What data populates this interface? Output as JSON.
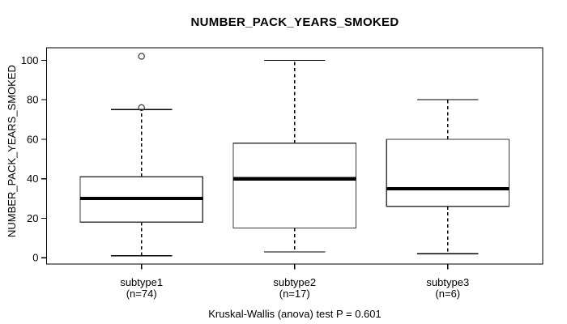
{
  "chart_data": {
    "type": "boxplot",
    "title": "NUMBER_PACK_YEARS_SMOKED",
    "ylabel": "NUMBER_PACK_YEARS_SMOKED",
    "footer": "Kruskal-Wallis (anova) test P = 0.601",
    "yticks": [
      0,
      20,
      40,
      60,
      80,
      100
    ],
    "ylim": [
      -3.2,
      106.3
    ],
    "xlim": [
      0.38,
      3.62
    ],
    "box_width_units": 0.8,
    "cap_width_units": 0.4,
    "grid": false,
    "legend": null,
    "groups": [
      {
        "x": 1,
        "label": "subtype1",
        "sublabel": "(n=74)",
        "low": 1,
        "q1": 18,
        "median": 30,
        "q3": 41,
        "high": 75,
        "outliers": [
          76,
          102
        ]
      },
      {
        "x": 2,
        "label": "subtype2",
        "sublabel": "(n=17)",
        "low": 3,
        "q1": 15,
        "median": 40,
        "q3": 58,
        "high": 100,
        "outliers": []
      },
      {
        "x": 3,
        "label": "subtype3",
        "sublabel": "(n=6)",
        "low": 2,
        "q1": 26,
        "median": 35,
        "q3": 60,
        "high": 80,
        "outliers": []
      }
    ],
    "colors": {
      "line": "#000000",
      "box_fill": "#ffffff",
      "background": "#ffffff"
    }
  }
}
